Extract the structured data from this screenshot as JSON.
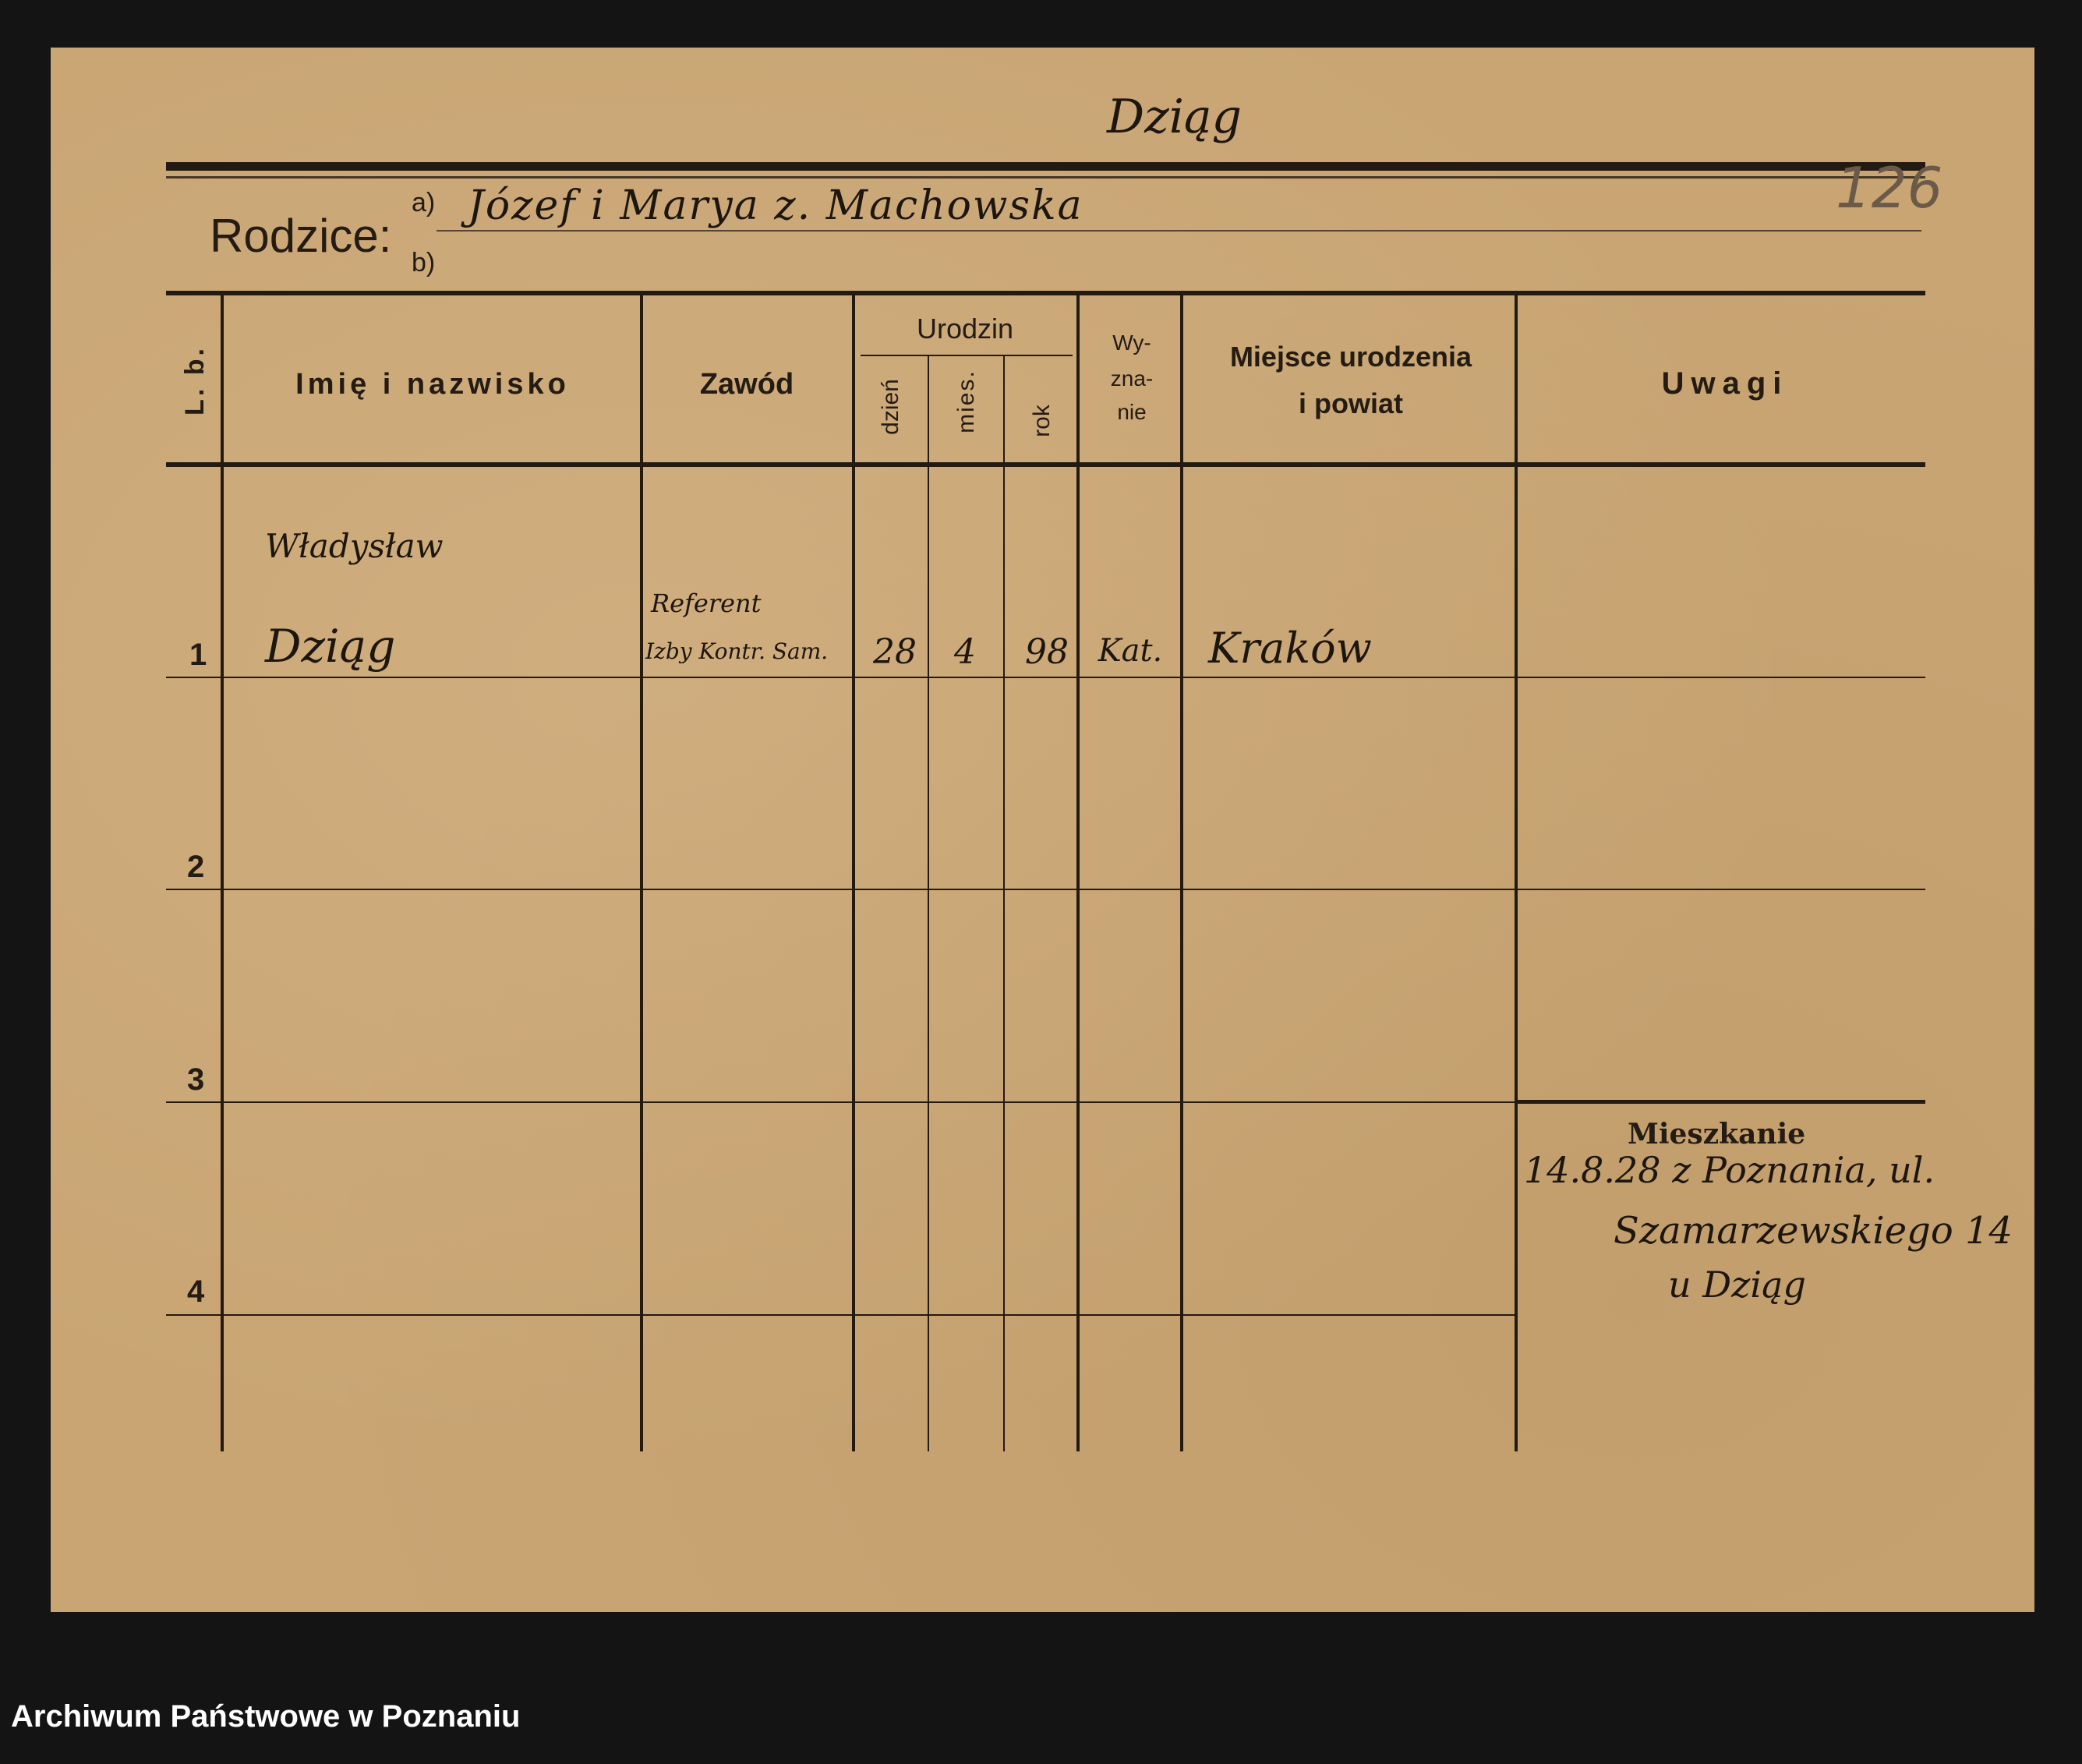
{
  "archive_label": "Archiwum Państwowe w Poznaniu",
  "form": {
    "surname_handwritten": "Dziąg",
    "sheet_number": "126",
    "parents_label": "Rodzice:",
    "parent_a_marker": "a)",
    "parent_b_marker": "b)",
    "parent_a_value": "Józef i Marya z. Machowska",
    "parent_b_value": "",
    "columns": {
      "lp": "L. b.",
      "name": "Imię i nazwisko",
      "occupation": "Zawód",
      "birth": "Urodzin",
      "day": "dzień",
      "month": "mies.",
      "year": "rok",
      "religion_1": "Wy-",
      "religion_2": "zna-",
      "religion_3": "nie",
      "birthplace_1": "Miejsce urodzenia",
      "birthplace_2": "i powiat",
      "remarks": "Uwagi"
    },
    "row_numbers": [
      "1",
      "2",
      "3",
      "4"
    ],
    "rows": [
      {
        "first_name": "Władysław",
        "last_name": "Dziąg",
        "occupation_1": "Referent",
        "occupation_2": "Izby Kontr. Sam.",
        "day": "28",
        "month": "4",
        "year": "98",
        "religion": "Kat.",
        "birthplace": "Kraków",
        "remarks": ""
      }
    ],
    "residence_label": "Mieszkanie",
    "residence_lines": [
      "14.8.28 z Poznania, ul.",
      "Szamarzewskiego 14",
      "u Dziąg"
    ]
  }
}
